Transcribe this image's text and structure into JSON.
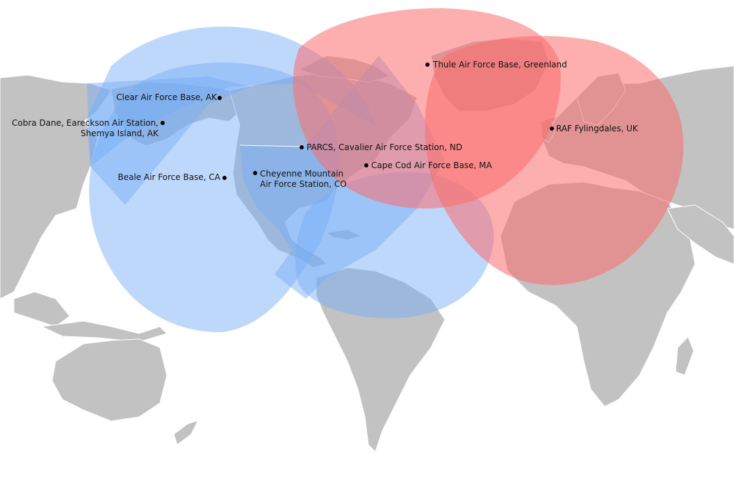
{
  "colors": {
    "land": "#c2c2c2",
    "border": "#ffffff",
    "ocean": "#ffffff",
    "blue_coverage": "#78aef7",
    "red_coverage": "#fb6b6b",
    "marker": "#000000"
  },
  "sites": [
    {
      "id": "clear",
      "lines": [
        "Clear Air Force Base, AK"
      ],
      "coverage": "blue"
    },
    {
      "id": "cobra",
      "lines": [
        "Cobra Dane, Eareckson Air Station,",
        "Shemya Island, AK"
      ],
      "coverage": "blue"
    },
    {
      "id": "beale",
      "lines": [
        "Beale Air Force Base, CA"
      ],
      "coverage": "blue"
    },
    {
      "id": "cheyenne",
      "lines": [
        "Cheyenne Mountain",
        "Air Force Station, CO"
      ],
      "coverage": "none"
    },
    {
      "id": "parcs",
      "lines": [
        "PARCS, Cavalier Air Force Station, ND"
      ],
      "coverage": "blue"
    },
    {
      "id": "capecod",
      "lines": [
        "Cape Cod Air Force Base, MA"
      ],
      "coverage": "red"
    },
    {
      "id": "thule",
      "lines": [
        "Thule Air Force Base, Greenland"
      ],
      "coverage": "red"
    },
    {
      "id": "fylingdales",
      "lines": [
        "RAF Fylingdales, UK"
      ],
      "coverage": "red"
    }
  ]
}
